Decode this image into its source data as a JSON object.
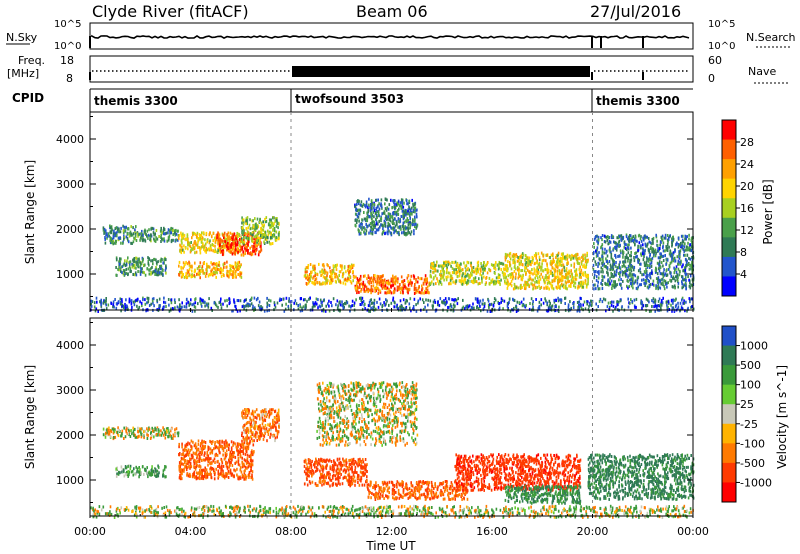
{
  "header": {
    "station": "Clyde River (fitACF)",
    "beam": "Beam 06",
    "date": "27/Jul/2016"
  },
  "nsky_panel": {
    "left_label": "N.Sky",
    "right_label": "N.Search",
    "left_ticks": [
      "10^5",
      "10^0"
    ],
    "right_ticks": [
      "10^5",
      "10^0"
    ]
  },
  "freq_panel": {
    "left_label_line1": "Freq.",
    "left_label_line2": "[MHz]",
    "right_label": "Nave",
    "left_ticks": [
      "18",
      "8"
    ],
    "right_ticks": [
      "60",
      "0"
    ]
  },
  "cpid_panel": {
    "label": "CPID",
    "modes": [
      {
        "name": "themis 3300",
        "start_hour": 0,
        "end_hour": 8
      },
      {
        "name": "twofsound 3503",
        "start_hour": 8,
        "end_hour": 20
      },
      {
        "name": "themis 3300",
        "start_hour": 20,
        "end_hour": 24
      }
    ]
  },
  "chart_data": [
    {
      "type": "heatmap",
      "quantity": "Power",
      "ylabel": "Slant Range [km]",
      "yticks": [
        "1000",
        "2000",
        "3000",
        "4000"
      ],
      "ylim": [
        200,
        4600
      ],
      "xlim": [
        0,
        24
      ],
      "colorbar": {
        "label": "Power [dB]",
        "ticks": [
          "4",
          "8",
          "12",
          "16",
          "20",
          "24",
          "28"
        ],
        "range": [
          0,
          30
        ],
        "colors": [
          "#0000ff",
          "#2255cc",
          "#2f7a55",
          "#4aa04a",
          "#a8d020",
          "#ffd400",
          "#ffa000",
          "#ff6000",
          "#ff0000"
        ]
      },
      "scatter_regions_km": [
        {
          "x0": 0.5,
          "x1": 1.8,
          "y0": 1700,
          "y1": 2100,
          "level": 9
        },
        {
          "x0": 1.8,
          "x1": 3.5,
          "y0": 1750,
          "y1": 2050,
          "level": 10
        },
        {
          "x0": 3.5,
          "x1": 6.0,
          "y0": 1500,
          "y1": 1950,
          "level": 18
        },
        {
          "x0": 5.0,
          "x1": 6.8,
          "y0": 1450,
          "y1": 1950,
          "level": 26
        },
        {
          "x0": 1.0,
          "x1": 3.0,
          "y0": 1000,
          "y1": 1400,
          "level": 10
        },
        {
          "x0": 3.5,
          "x1": 6.0,
          "y0": 950,
          "y1": 1300,
          "level": 20
        },
        {
          "x0": 6.0,
          "x1": 7.5,
          "y0": 1700,
          "y1": 2300,
          "level": 14
        },
        {
          "x0": 8.5,
          "x1": 10.5,
          "y0": 800,
          "y1": 1250,
          "level": 20
        },
        {
          "x0": 10.5,
          "x1": 13.5,
          "y0": 600,
          "y1": 1000,
          "level": 24
        },
        {
          "x0": 13.5,
          "x1": 16.5,
          "y0": 800,
          "y1": 1300,
          "level": 16
        },
        {
          "x0": 16.5,
          "x1": 19.8,
          "y0": 700,
          "y1": 1500,
          "level": 18
        },
        {
          "x0": 10.5,
          "x1": 13.0,
          "y0": 1900,
          "y1": 2700,
          "level": 8
        },
        {
          "x0": 20.0,
          "x1": 24.0,
          "y0": 700,
          "y1": 1900,
          "level": 8
        },
        {
          "x0": 0.0,
          "x1": 24.0,
          "y0": 200,
          "y1": 500,
          "level": 6
        }
      ]
    },
    {
      "type": "heatmap",
      "quantity": "Velocity",
      "ylabel": "Slant Range [km]",
      "yticks": [
        "1000",
        "2000",
        "3000",
        "4000"
      ],
      "ylim": [
        200,
        4600
      ],
      "xlim": [
        0,
        24
      ],
      "xticks": [
        "00:00",
        "04:00",
        "08:00",
        "12:00",
        "16:00",
        "20:00",
        "00:00"
      ],
      "xlabel": "Time UT",
      "colorbar": {
        "label": "Velocity [m s^-1]",
        "ticks": [
          "1000",
          "500",
          "100",
          "25",
          "-25",
          "-100",
          "-500",
          "-1000"
        ],
        "colors": [
          "#2050c8",
          "#2f7a55",
          "#3a9a3a",
          "#66cc33",
          "#c8c8b8",
          "#ffb300",
          "#ff7a00",
          "#ff3a00",
          "#ff0000"
        ]
      },
      "scatter_regions_km": [
        {
          "x0": 0.5,
          "x1": 3.5,
          "y0": 1950,
          "y1": 2200,
          "vel": 0
        },
        {
          "x0": 1.0,
          "x1": 3.0,
          "y0": 1100,
          "y1": 1350,
          "vel": 200
        },
        {
          "x0": 3.5,
          "x1": 6.5,
          "y0": 1050,
          "y1": 1900,
          "vel": -300
        },
        {
          "x0": 6.0,
          "x1": 7.5,
          "y0": 1900,
          "y1": 2600,
          "vel": -200
        },
        {
          "x0": 8.5,
          "x1": 11.0,
          "y0": 900,
          "y1": 1500,
          "vel": -400
        },
        {
          "x0": 11.0,
          "x1": 15.0,
          "y0": 600,
          "y1": 1000,
          "vel": -300
        },
        {
          "x0": 14.5,
          "x1": 19.5,
          "y0": 800,
          "y1": 1600,
          "vel": -600
        },
        {
          "x0": 16.5,
          "x1": 19.5,
          "y0": 500,
          "y1": 900,
          "vel": 300
        },
        {
          "x0": 19.8,
          "x1": 24.0,
          "y0": 600,
          "y1": 1600,
          "vel": 400
        },
        {
          "x0": 9.0,
          "x1": 13.0,
          "y0": 1800,
          "y1": 3200,
          "vel": 0
        },
        {
          "x0": 0.0,
          "x1": 24.0,
          "y0": 200,
          "y1": 450,
          "vel": 50
        }
      ]
    }
  ]
}
